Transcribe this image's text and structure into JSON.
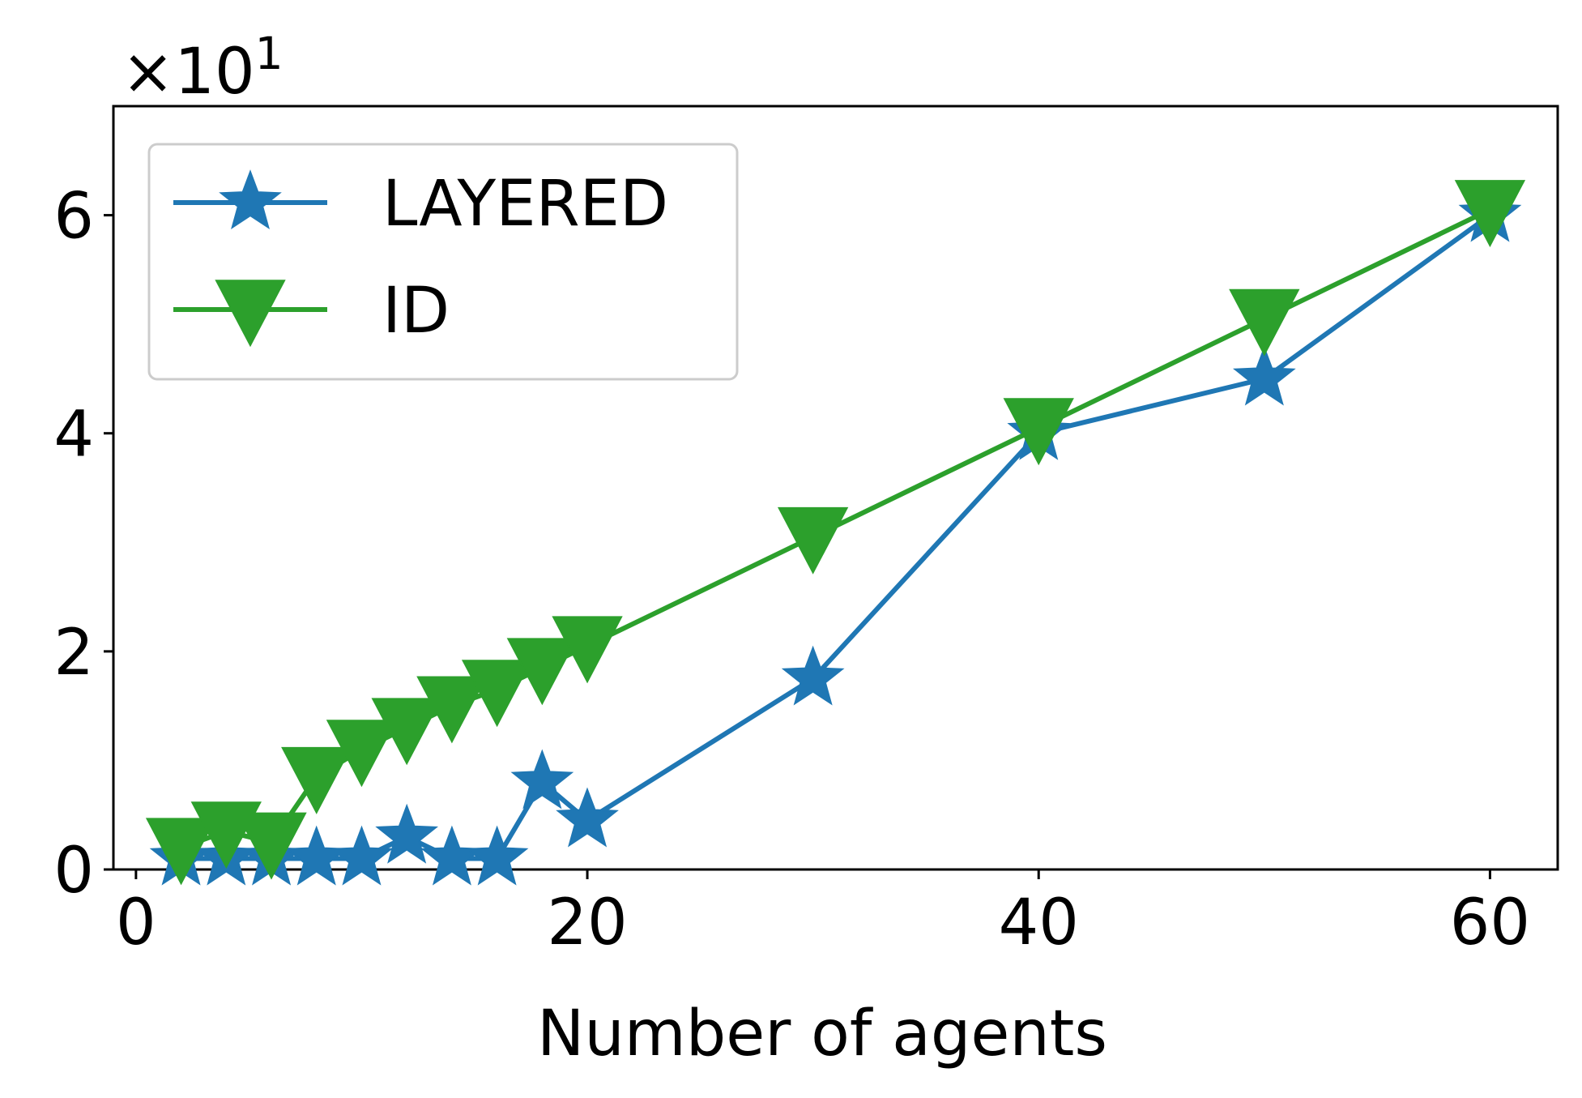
{
  "chart_data": {
    "type": "line",
    "title": "",
    "xlabel": "Number of agents",
    "ylabel": "",
    "y_multiplier": {
      "base": "×10",
      "exponent": "1"
    },
    "xlim": [
      -1,
      63
    ],
    "ylim": [
      0,
      7
    ],
    "xticks": [
      0,
      20,
      40,
      60
    ],
    "yticks": [
      0,
      2,
      4,
      6
    ],
    "grid": false,
    "legend_position": "top-left",
    "series": [
      {
        "name": "LAYERED",
        "color": "#1f77b4",
        "marker": "star",
        "x": [
          2,
          4,
          6,
          8,
          10,
          12,
          14,
          16,
          18,
          20,
          30,
          40,
          50,
          60
        ],
        "y": [
          0.1,
          0.1,
          0.1,
          0.1,
          0.1,
          0.3,
          0.1,
          0.1,
          0.8,
          0.45,
          1.75,
          4.0,
          4.5,
          6.0
        ]
      },
      {
        "name": "ID",
        "color": "#2ca02c",
        "marker": "triangle-down",
        "x": [
          2,
          4,
          6,
          8,
          10,
          12,
          14,
          16,
          18,
          20,
          30,
          40,
          50,
          60
        ],
        "y": [
          0.2,
          0.35,
          0.25,
          0.85,
          1.1,
          1.3,
          1.5,
          1.65,
          1.85,
          2.05,
          3.05,
          4.05,
          5.05,
          6.05
        ]
      }
    ]
  }
}
